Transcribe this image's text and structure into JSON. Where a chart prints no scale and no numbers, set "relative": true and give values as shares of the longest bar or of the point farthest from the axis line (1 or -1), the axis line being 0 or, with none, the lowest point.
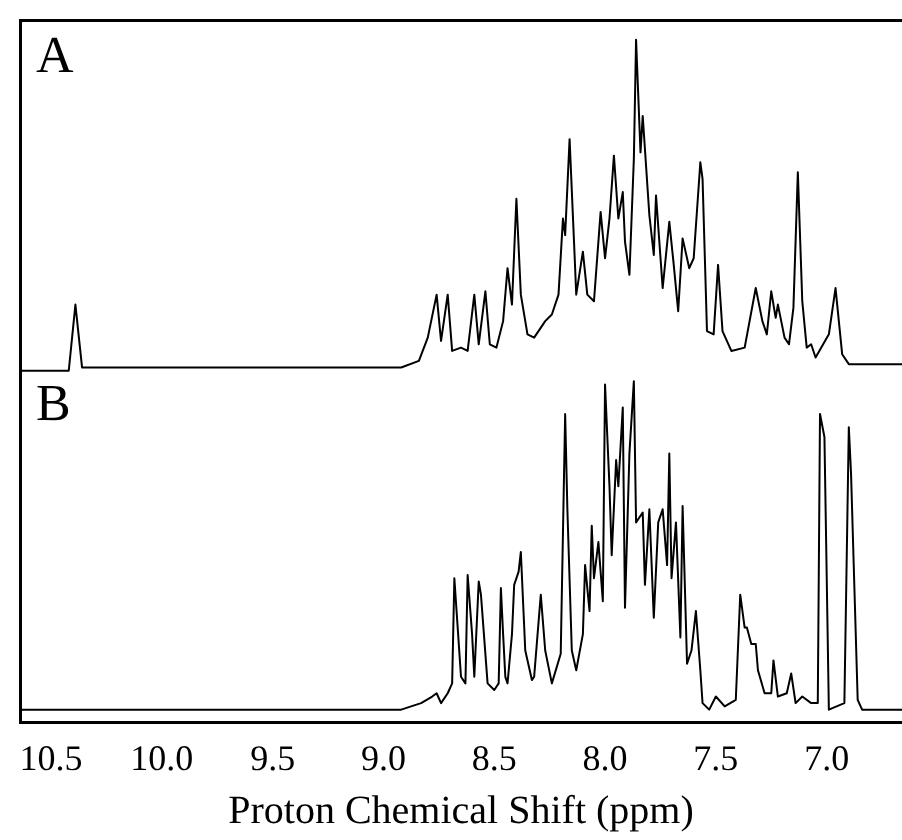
{
  "chart_data": [
    {
      "type": "line",
      "title": "A",
      "relative": true,
      "tick_labels": false,
      "legend": false,
      "grid": false,
      "marker": "none",
      "xlim": [
        10.64,
        6.66
      ],
      "series": [
        {
          "color": "#000000",
          "x": [
            10.64,
            10.42,
            10.39,
            10.36,
            8.92,
            8.84,
            8.8,
            8.76,
            8.74,
            8.71,
            8.69,
            8.65,
            8.62,
            8.59,
            8.57,
            8.54,
            8.52,
            8.49,
            8.46,
            8.44,
            8.42,
            8.4,
            8.38,
            8.35,
            8.32,
            8.27,
            8.24,
            8.21,
            8.19,
            8.18,
            8.16,
            8.14,
            8.13,
            8.1,
            8.08,
            8.05,
            8.02,
            8.0,
            7.98,
            7.96,
            7.94,
            7.92,
            7.91,
            7.89,
            7.87,
            7.86,
            7.84,
            7.83,
            7.8,
            7.78,
            7.77,
            7.74,
            7.71,
            7.69,
            7.67,
            7.65,
            7.62,
            7.6,
            7.57,
            7.56,
            7.54,
            7.51,
            7.49,
            7.47,
            7.43,
            7.37,
            7.32,
            7.29,
            7.27,
            7.25,
            7.23,
            7.22,
            7.19,
            7.17,
            7.15,
            7.13,
            7.11,
            7.09,
            7.07,
            7.05,
            6.99,
            6.96,
            6.93,
            6.9,
            6.81,
            6.66
          ],
          "values": [
            0,
            0,
            0.2,
            0.01,
            0.01,
            0.03,
            0.1,
            0.23,
            0.09,
            0.23,
            0.06,
            0.07,
            0.06,
            0.23,
            0.08,
            0.24,
            0.08,
            0.07,
            0.15,
            0.31,
            0.2,
            0.52,
            0.23,
            0.11,
            0.1,
            0.15,
            0.17,
            0.23,
            0.46,
            0.41,
            0.7,
            0.39,
            0.23,
            0.36,
            0.23,
            0.21,
            0.48,
            0.34,
            0.46,
            0.65,
            0.46,
            0.54,
            0.39,
            0.29,
            0.64,
            1.0,
            0.66,
            0.77,
            0.47,
            0.35,
            0.53,
            0.25,
            0.45,
            0.32,
            0.18,
            0.4,
            0.31,
            0.34,
            0.63,
            0.58,
            0.12,
            0.11,
            0.32,
            0.12,
            0.06,
            0.07,
            0.25,
            0.15,
            0.11,
            0.24,
            0.16,
            0.2,
            0.1,
            0.08,
            0.19,
            0.6,
            0.21,
            0.07,
            0.08,
            0.04,
            0.11,
            0.25,
            0.05,
            0.02,
            0.02,
            0.02
          ]
        }
      ]
    },
    {
      "type": "line",
      "title": "B",
      "relative": true,
      "tick_labels": "x",
      "legend": false,
      "grid": false,
      "marker": "none",
      "xlabel": "Proton Chemical Shift (ppm)",
      "xlim": [
        10.64,
        6.66
      ],
      "xticks": [
        {
          "value": 10.5,
          "label": "10.5"
        },
        {
          "value": 10,
          "label": "10.0"
        },
        {
          "value": 9.5,
          "label": "9.5"
        },
        {
          "value": 9,
          "label": "9.0"
        },
        {
          "value": 8.5,
          "label": "8.5"
        },
        {
          "value": 8,
          "label": "8.0"
        },
        {
          "value": 7.5,
          "label": "7.5"
        },
        {
          "value": 7,
          "label": "7.0"
        }
      ],
      "series": [
        {
          "color": "#000000",
          "x": [
            10.64,
            8.92,
            8.83,
            8.78,
            8.76,
            8.74,
            8.71,
            8.69,
            8.68,
            8.65,
            8.63,
            8.62,
            8.6,
            8.59,
            8.57,
            8.56,
            8.53,
            8.5,
            8.48,
            8.47,
            8.46,
            8.45,
            8.44,
            8.42,
            8.41,
            8.39,
            8.38,
            8.36,
            8.33,
            8.32,
            8.29,
            8.27,
            8.24,
            8.2,
            8.18,
            8.17,
            8.15,
            8.13,
            8.1,
            8.09,
            8.07,
            8.06,
            8.05,
            8.03,
            8.01,
            8.0,
            7.98,
            7.97,
            7.95,
            7.94,
            7.92,
            7.91,
            7.89,
            7.87,
            7.86,
            7.83,
            7.82,
            7.8,
            7.78,
            7.76,
            7.74,
            7.72,
            7.71,
            7.7,
            7.68,
            7.66,
            7.65,
            7.63,
            7.61,
            7.59,
            7.57,
            7.56,
            7.53,
            7.5,
            7.46,
            7.41,
            7.39,
            7.37,
            7.36,
            7.34,
            7.32,
            7.31,
            7.28,
            7.25,
            7.24,
            7.22,
            7.18,
            7.16,
            7.14,
            7.11,
            7.07,
            7.04,
            7.03,
            7.01,
            6.99,
            6.92,
            6.9,
            6.89,
            6.86,
            6.84,
            6.66
          ],
          "values": [
            0,
            0,
            0.02,
            0.04,
            0.05,
            0.02,
            0.05,
            0.08,
            0.4,
            0.1,
            0.08,
            0.41,
            0.23,
            0.1,
            0.39,
            0.35,
            0.08,
            0.06,
            0.08,
            0.37,
            0.23,
            0.1,
            0.08,
            0.23,
            0.38,
            0.42,
            0.48,
            0.18,
            0.09,
            0.1,
            0.35,
            0.18,
            0.08,
            0.17,
            0.9,
            0.61,
            0.18,
            0.12,
            0.23,
            0.44,
            0.3,
            0.56,
            0.4,
            0.51,
            0.33,
            0.99,
            0.68,
            0.47,
            0.76,
            0.68,
            0.92,
            0.31,
            0.78,
            1.0,
            0.57,
            0.6,
            0.38,
            0.61,
            0.28,
            0.57,
            0.61,
            0.44,
            0.78,
            0.4,
            0.57,
            0.22,
            0.62,
            0.14,
            0.18,
            0.3,
            0.12,
            0.02,
            0,
            0.04,
            0.01,
            0.03,
            0.35,
            0.25,
            0.25,
            0.2,
            0.2,
            0.12,
            0.05,
            0.05,
            0.15,
            0.04,
            0.05,
            0.11,
            0.02,
            0.04,
            0.02,
            0.02,
            0.9,
            0.83,
            0,
            0.02,
            0.86,
            0.72,
            0.03,
            0,
            0
          ]
        }
      ]
    }
  ]
}
